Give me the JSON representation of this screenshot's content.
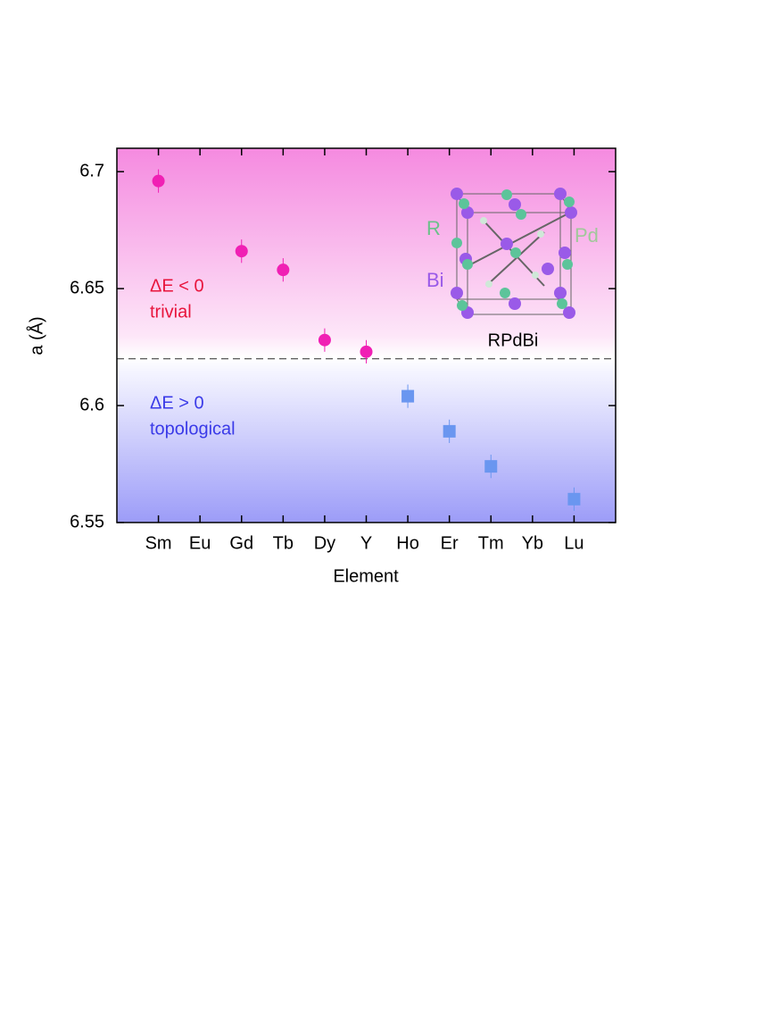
{
  "chart_data": {
    "type": "scatter",
    "xlabel": "Element",
    "ylabel": "a (Å)",
    "categories": [
      "Sm",
      "Eu",
      "Gd",
      "Tb",
      "Dy",
      "Y",
      "Ho",
      "Er",
      "Tm",
      "Yb",
      "Lu"
    ],
    "series": [
      {
        "color": "#f020b4",
        "marker": "circle",
        "values": [
          6.696,
          null,
          6.666,
          6.658,
          6.628,
          6.623,
          null,
          null,
          null,
          null,
          null
        ],
        "errors": [
          0.005,
          null,
          0.005,
          0.005,
          0.005,
          0.005,
          null,
          null,
          null,
          null,
          null
        ]
      },
      {
        "color": "#6a96f0",
        "marker": "square",
        "values": [
          null,
          null,
          null,
          null,
          null,
          null,
          6.604,
          6.589,
          6.574,
          null,
          6.56
        ],
        "errors": [
          null,
          null,
          null,
          null,
          null,
          null,
          0.005,
          0.005,
          0.005,
          null,
          0.005
        ]
      }
    ],
    "threshold": 6.62,
    "ylim": [
      6.55,
      6.71
    ],
    "yticks": [
      6.55,
      6.6,
      6.65,
      6.7
    ],
    "annotations": [
      {
        "text": "ΔE < 0",
        "color": "#e8143c"
      },
      {
        "text": "trivial",
        "color": "#e8143c"
      },
      {
        "text": "ΔE > 0",
        "color": "#3a3ae8"
      },
      {
        "text": "topological",
        "color": "#3a3ae8"
      },
      {
        "text": "R",
        "color": "#6cc08a"
      },
      {
        "text": "Pd",
        "color": "#a0c89a"
      },
      {
        "text": "Bi",
        "color": "#9a5ae8"
      },
      {
        "text": "RPdBi",
        "color": "#000000"
      }
    ]
  }
}
